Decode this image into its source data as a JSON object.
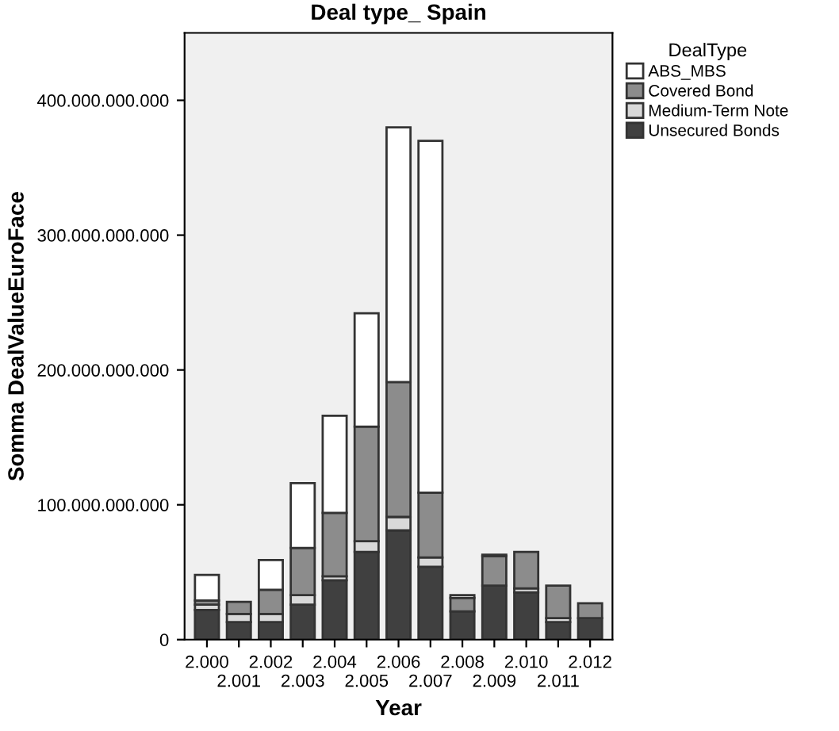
{
  "chart_data": {
    "type": "bar",
    "title": "Deal type_ Spain",
    "xlabel": "Year",
    "ylabel": "Somma DealValueEuroFace",
    "legend_title": "DealType",
    "categories": [
      "2.000",
      "2.001",
      "2.002",
      "2.003",
      "2.004",
      "2.005",
      "2.006",
      "2.007",
      "2.008",
      "2.009",
      "2.010",
      "2.011",
      "2.012"
    ],
    "stacked": true,
    "legend": "right",
    "grid": false,
    "ylim": [
      0,
      450000000000
    ],
    "yticks": [
      {
        "value": 0,
        "label": "0"
      },
      {
        "value": 100000000000,
        "label": "100.000.000.000"
      },
      {
        "value": 200000000000,
        "label": "200.000.000.000"
      },
      {
        "value": 300000000000,
        "label": "300.000.000.000"
      },
      {
        "value": 400000000000,
        "label": "400.000.000.000"
      }
    ],
    "series": [
      {
        "name": "Unsecured Bonds",
        "color": "#404040",
        "values": [
          22000000000,
          13000000000,
          13000000000,
          26000000000,
          44000000000,
          65000000000,
          81000000000,
          54000000000,
          21000000000,
          40000000000,
          35000000000,
          13000000000,
          16000000000
        ]
      },
      {
        "name": "Medium-Term Note",
        "color": "#d9d9d9",
        "values": [
          4000000000,
          6000000000,
          6000000000,
          7000000000,
          3000000000,
          8000000000,
          10000000000,
          7000000000,
          null,
          null,
          3000000000,
          3000000000,
          null
        ]
      },
      {
        "name": "Covered Bond",
        "color": "#8c8c8c",
        "values": [
          3000000000,
          9000000000,
          18000000000,
          35000000000,
          47000000000,
          85000000000,
          100000000000,
          48000000000,
          10000000000,
          22000000000,
          27000000000,
          24000000000,
          11000000000
        ]
      },
      {
        "name": "ABS_MBS",
        "color": "#ffffff",
        "values": [
          19000000000,
          null,
          22000000000,
          48000000000,
          72000000000,
          84000000000,
          189000000000,
          261000000000,
          2000000000,
          1000000000,
          null,
          null,
          null
        ]
      }
    ]
  }
}
